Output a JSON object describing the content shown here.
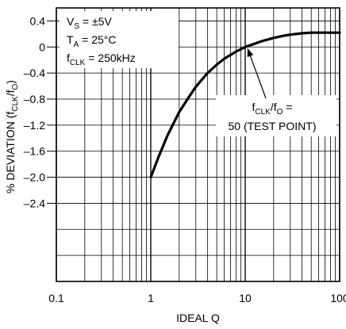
{
  "chart_data": {
    "type": "line",
    "x_scale": "log",
    "xlim": [
      0.1,
      100
    ],
    "ylim": [
      -3.6,
      0.6
    ],
    "xlabel": "IDEAL Q",
    "ylabel": "% DEVIATION (f",
    "ylabel_sub1": "CLK",
    "ylabel_mid": "/f",
    "ylabel_sub2": "O",
    "ylabel_end": ")",
    "x_ticks": [
      {
        "value": 0.1,
        "label": "0.1"
      },
      {
        "value": 1,
        "label": "1"
      },
      {
        "value": 10,
        "label": "10"
      },
      {
        "value": 100,
        "label": "100"
      }
    ],
    "y_ticks": [
      {
        "value": 0.4,
        "label": "0.4"
      },
      {
        "value": 0,
        "label": "0"
      },
      {
        "value": -0.4,
        "label": "–0.4"
      },
      {
        "value": -0.8,
        "label": "–0.8"
      },
      {
        "value": -1.2,
        "label": "–1.2"
      },
      {
        "value": -1.6,
        "label": "–1.6"
      },
      {
        "value": -2.0,
        "label": "–2.0"
      },
      {
        "value": -2.4,
        "label": "–2.4"
      }
    ],
    "y_grid": [
      0.4,
      0,
      -0.4,
      -0.8,
      -1.2,
      -1.6,
      -2.0,
      -2.4,
      -2.8,
      -3.2
    ],
    "grid": true,
    "conditions": [
      {
        "main": "V",
        "sub": "S",
        "rest": " = ±5V"
      },
      {
        "main": "T",
        "sub": "A",
        "rest": " = 25°C"
      },
      {
        "main": "f",
        "sub": "CLK",
        "rest": " = 250kHz"
      }
    ],
    "annotation": {
      "line1_main": "f",
      "line1_sub1": "CLK",
      "line1_mid": "/f",
      "line1_sub2": "O",
      "line1_rest": " =",
      "line2": "50 (TEST POINT)",
      "points_to": {
        "x": 10,
        "y": 0.0
      }
    },
    "series": [
      {
        "color": "#000000",
        "x": [
          1,
          1.2,
          1.5,
          2,
          2.5,
          3,
          4,
          5,
          6,
          8,
          10,
          12,
          15,
          20,
          25,
          30,
          40,
          50,
          60,
          70,
          80,
          100
        ],
        "y": [
          -2.0,
          -1.7,
          -1.36,
          -1.0,
          -0.78,
          -0.61,
          -0.4,
          -0.27,
          -0.18,
          -0.07,
          0.0,
          0.04,
          0.09,
          0.14,
          0.17,
          0.19,
          0.21,
          0.22,
          0.22,
          0.22,
          0.22,
          0.22
        ]
      }
    ]
  }
}
